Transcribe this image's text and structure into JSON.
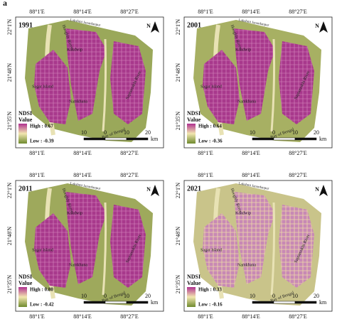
{
  "figure_label": "a",
  "lon_labels": [
    "88°1'E",
    "88°14'E",
    "88°27'E"
  ],
  "lat_labels": [
    "22°1'N",
    "21°48'N",
    "21°35'N"
  ],
  "north": "N",
  "legend_title": "NDSI",
  "legend_subtitle": "Value",
  "scale_labels": [
    "10",
    "0",
    "10",
    "20"
  ],
  "scale_unit": "km",
  "place_labels": [
    "Kakdwip",
    "Sagar Island",
    "Namkhana",
    "Hooghly River",
    "Bay of Bengal",
    "Lakshmi Janardanpur",
    "Saptamukhi River"
  ],
  "panels": [
    {
      "year": "1991",
      "high": "High : 0.67",
      "low": "Low : -0.39"
    },
    {
      "year": "2001",
      "high": "High : 0.64",
      "low": "Low : -0.36"
    },
    {
      "year": "2011",
      "high": "High : 0.80",
      "low": "Low : -0.42"
    },
    {
      "year": "2021",
      "high": "High : 0.33",
      "low": "Low : -0.16"
    }
  ]
}
